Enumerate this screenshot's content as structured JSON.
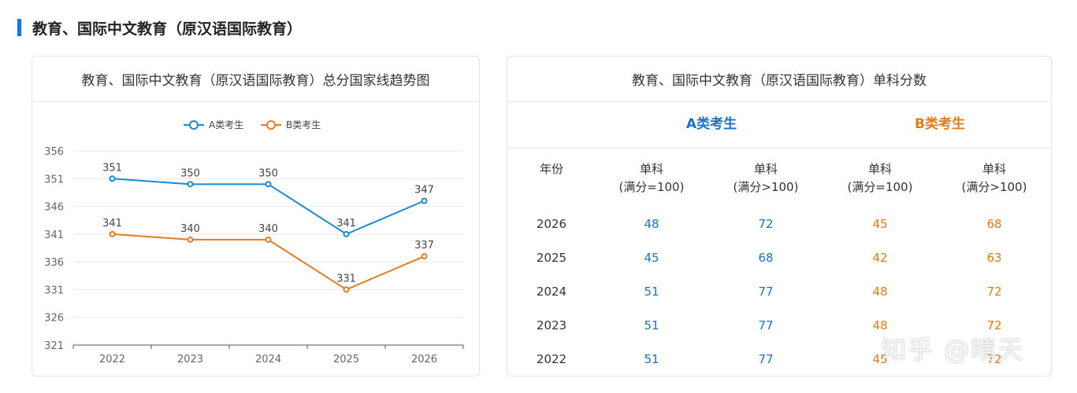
{
  "section": {
    "title": "教育、国际中文教育（原汉语国际教育）"
  },
  "left_card": {
    "title": "教育、国际中文教育（原汉语国际教育）总分国家线趋势图"
  },
  "right_card": {
    "title": "教育、国际中文教育（原汉语国际教育）单科分数",
    "group_a": "A类考生",
    "group_b": "B类考生",
    "headers": {
      "year": "年份",
      "col_a1": [
        "单科",
        "(满分=100)"
      ],
      "col_a2": [
        "单科",
        "(满分>100)"
      ],
      "col_b1": [
        "单科",
        "(满分=100)"
      ],
      "col_b2": [
        "单科",
        "(满分>100)"
      ]
    },
    "rows": [
      {
        "year": "2026",
        "a1": "48",
        "a2": "72",
        "b1": "45",
        "b2": "68"
      },
      {
        "year": "2025",
        "a1": "45",
        "a2": "68",
        "b1": "42",
        "b2": "63"
      },
      {
        "year": "2024",
        "a1": "51",
        "a2": "77",
        "b1": "48",
        "b2": "72"
      },
      {
        "year": "2023",
        "a1": "51",
        "a2": "77",
        "b1": "48",
        "b2": "72"
      },
      {
        "year": "2022",
        "a1": "51",
        "a2": "77",
        "b1": "45",
        "b2": "72"
      }
    ]
  },
  "watermark": "知乎 @晴天",
  "colors": {
    "series_a": "#1a8ad4",
    "series_b": "#e67a1f",
    "accent": "#1a73e8"
  },
  "chart_data": {
    "type": "line",
    "x": [
      "2022",
      "2023",
      "2024",
      "2025",
      "2026"
    ],
    "series": [
      {
        "name": "A类考生",
        "values": [
          351,
          350,
          350,
          341,
          347
        ]
      },
      {
        "name": "B类考生",
        "values": [
          341,
          340,
          340,
          331,
          337
        ]
      }
    ],
    "ylim": [
      321,
      356
    ],
    "yticks": [
      321,
      326,
      331,
      336,
      341,
      346,
      351,
      356
    ],
    "grid": true,
    "legend": "top-center"
  }
}
